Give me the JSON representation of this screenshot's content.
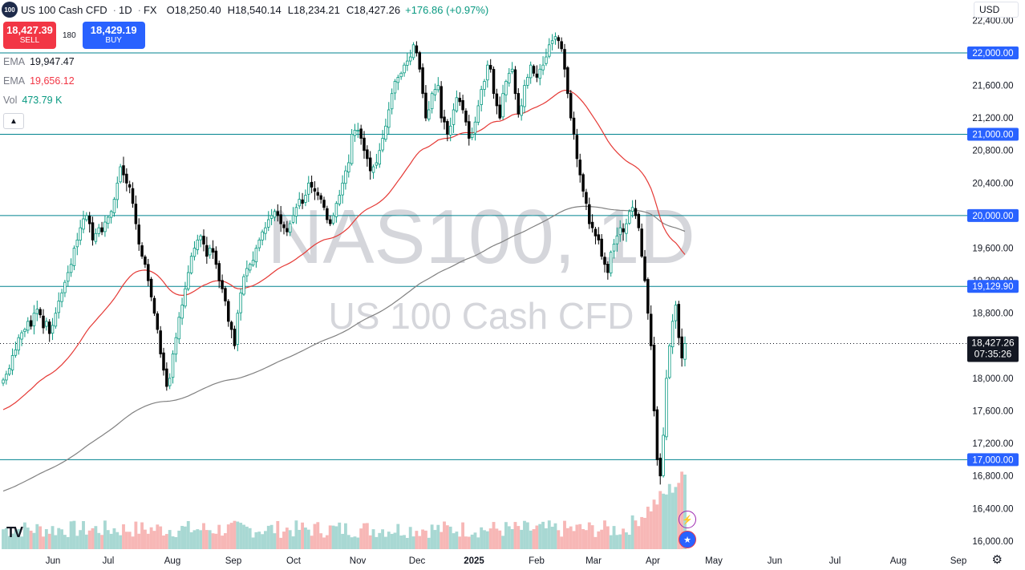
{
  "header": {
    "symbol_badge": "100",
    "title": "US 100 Cash CFD",
    "interval": "1D",
    "source": "FX",
    "open_label": "O",
    "open": "18,250.40",
    "high_label": "H",
    "high": "18,540.14",
    "low_label": "L",
    "low": "18,234.21",
    "close_label": "C",
    "close": "18,427.26",
    "change": "+176.86 (+0.97%)"
  },
  "trade": {
    "sell_price": "18,427.39",
    "sell_label": "SELL",
    "spread": "180",
    "buy_price": "18,429.19",
    "buy_label": "BUY"
  },
  "indicators": [
    {
      "name": "EMA",
      "value": "19,947.47",
      "color": "#131722"
    },
    {
      "name": "EMA",
      "value": "19,656.12",
      "color": "#f23645"
    },
    {
      "name": "Vol",
      "value": "473.79 K",
      "color": "#089981"
    }
  ],
  "collapse_icon": "chevron-up-icon",
  "currency": "USD",
  "watermark": {
    "line1": "NAS100, 1D",
    "line2": "US 100 Cash CFD"
  },
  "price_tag": {
    "value": "18,427.26",
    "countdown": "07:35:26"
  },
  "colors": {
    "up": "#089981",
    "down": "#000000",
    "hline": "#00838f",
    "ema1": "#808080",
    "ema2": "#e53935",
    "vol_up": "#a8d8d3",
    "vol_down": "#f7b7b6",
    "accent": "#2962ff"
  },
  "chart_data": {
    "type": "candlestick",
    "ylim": [
      15900,
      22650
    ],
    "y_ticks": [
      "22,400.00",
      "22,000.00",
      "21,600.00",
      "21,200.00",
      "20,800.00",
      "20,400.00",
      "20,000.00",
      "19,600.00",
      "19,200.00",
      "18,800.00",
      "18,400.00",
      "18,000.00",
      "17,600.00",
      "17,200.00",
      "16,800.00",
      "16,400.00",
      "16,000.00"
    ],
    "y_tick_values": [
      22400,
      22000,
      21600,
      21200,
      20800,
      20400,
      20000,
      19600,
      19200,
      18800,
      18400,
      18000,
      17600,
      17200,
      16800,
      16400,
      16000
    ],
    "x_labels": [
      "Jun",
      "Jul",
      "Aug",
      "Sep",
      "Oct",
      "Nov",
      "Dec",
      "2025",
      "Feb",
      "Mar",
      "Apr",
      "May",
      "Jun",
      "Jul",
      "Aug",
      "Sep"
    ],
    "horizontal_levels": [
      "22,000.00",
      "21,000.00",
      "20,000.00",
      "19,129.90",
      "17,000.00"
    ],
    "horizontal_level_values": [
      22000,
      21000,
      20000,
      19129.9,
      17000
    ],
    "closes": [
      17980,
      18050,
      18120,
      18280,
      18350,
      18500,
      18560,
      18600,
      18700,
      18640,
      18800,
      18850,
      18780,
      18620,
      18700,
      18550,
      18650,
      18800,
      18950,
      19050,
      19180,
      19300,
      19400,
      19600,
      19700,
      19850,
      19960,
      20000,
      19900,
      19700,
      19780,
      19850,
      19800,
      19920,
      19980,
      20050,
      20200,
      20400,
      20600,
      20500,
      20400,
      20350,
      20150,
      19900,
      19650,
      19500,
      19400,
      19200,
      19000,
      18800,
      18600,
      18300,
      18100,
      17900,
      18000,
      18300,
      18500,
      18750,
      18900,
      19100,
      19300,
      19500,
      19600,
      19700,
      19750,
      19650,
      19500,
      19600,
      19550,
      19400,
      19200,
      19100,
      18950,
      18700,
      18600,
      18400,
      18800,
      19050,
      19250,
      19350,
      19400,
      19450,
      19600,
      19700,
      19800,
      19850,
      19950,
      20000,
      20050,
      20000,
      19900,
      19850,
      19800,
      19900,
      20000,
      20100,
      20200,
      20150,
      20250,
      20400,
      20350,
      20300,
      20250,
      20200,
      20100,
      19950,
      19900,
      20000,
      20150,
      20250,
      20400,
      20550,
      20650,
      21000,
      21050,
      21050,
      20950,
      20800,
      20700,
      20550,
      20600,
      20650,
      20800,
      20950,
      21100,
      21300,
      21500,
      21650,
      21700,
      21750,
      21850,
      21900,
      21950,
      22100,
      22000,
      21800,
      21500,
      21200,
      21300,
      21500,
      21550,
      21600,
      21200,
      21150,
      21000,
      21100,
      21300,
      21450,
      21400,
      21300,
      21150,
      20950,
      21000,
      21150,
      21350,
      21550,
      21650,
      21850,
      21800,
      21500,
      21350,
      21200,
      21500,
      21650,
      21750,
      21800,
      21500,
      21250,
      21350,
      21600,
      21700,
      21850,
      21750,
      21700,
      21800,
      21850,
      21950,
      22100,
      22150,
      22200,
      22150,
      22050,
      21800,
      21500,
      21200,
      21000,
      20700,
      20500,
      20300,
      20150,
      19900,
      19850,
      19750,
      19700,
      19500,
      19400,
      19300,
      19550,
      19650,
      19750,
      19850,
      19800,
      19900,
      20050,
      20100,
      20000,
      19850,
      19500,
      19200,
      18800,
      18400,
      17600,
      17000,
      16800,
      17300,
      18000,
      18400,
      18700,
      18900,
      18500,
      18250,
      18427
    ]
  }
}
